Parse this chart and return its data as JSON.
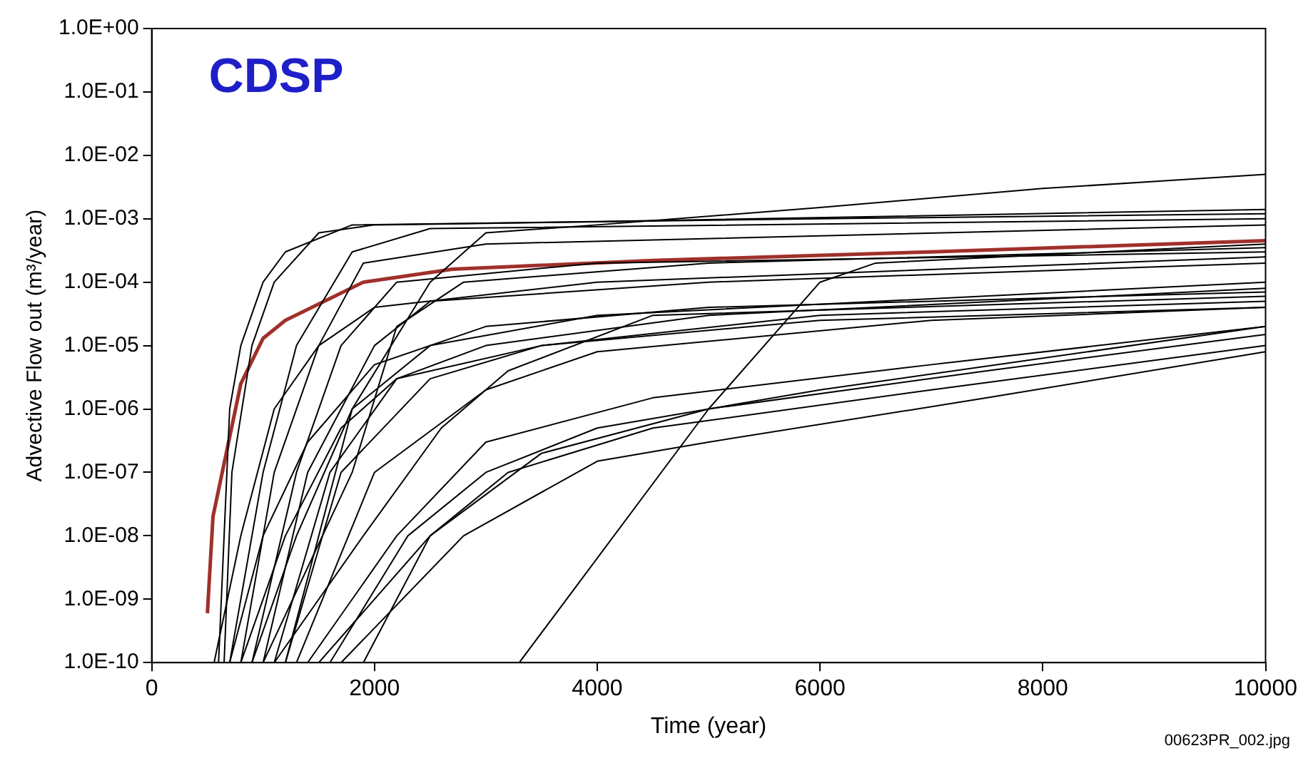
{
  "chart_data": {
    "type": "line",
    "title": "CDSP",
    "xlabel": "Time (year)",
    "ylabel": "Advective Flow out (m³/year)",
    "log": "y",
    "grid": false,
    "legend": false,
    "marker": "none",
    "line_style": "solid",
    "xlim": [
      0,
      10000
    ],
    "xticks": [
      0,
      2000,
      4000,
      6000,
      8000,
      10000
    ],
    "ylim": [
      1e-10,
      1
    ],
    "yticks": [
      {
        "value": 1e-10,
        "label": "1.0E-10"
      },
      {
        "value": 1e-09,
        "label": "1.0E-09"
      },
      {
        "value": 1e-08,
        "label": "1.0E-08"
      },
      {
        "value": 1e-07,
        "label": "1.0E-07"
      },
      {
        "value": 1e-06,
        "label": "1.0E-06"
      },
      {
        "value": 1e-05,
        "label": "1.0E-05"
      },
      {
        "value": 0.0001,
        "label": "1.0E-04"
      },
      {
        "value": 0.001,
        "label": "1.0E-03"
      },
      {
        "value": 0.01,
        "label": "1.0E-02"
      },
      {
        "value": 0.1,
        "label": "1.0E-01"
      },
      {
        "value": 1,
        "label": "1.0E+00"
      }
    ],
    "annotations": [
      "00623PR_002.jpg"
    ],
    "series": [
      {
        "color": "#000000",
        "x": [
          600,
          650,
          700,
          800,
          1000,
          1200,
          1800,
          4000,
          10000
        ],
        "values": [
          1e-10,
          1e-08,
          1e-06,
          1e-05,
          0.0001,
          0.0003,
          0.0008,
          0.0009,
          0.0014
        ]
      },
      {
        "color": "#000000",
        "x": [
          1200,
          1800,
          2500,
          3000,
          4000,
          6000,
          8000,
          10000
        ],
        "values": [
          1e-10,
          1e-06,
          0.0001,
          0.0006,
          0.0008,
          0.0015,
          0.003,
          0.005
        ]
      },
      {
        "color": "#000000",
        "x": [
          700,
          1000,
          1300,
          1800,
          2500,
          10000
        ],
        "values": [
          1e-10,
          1e-07,
          1e-05,
          0.0003,
          0.0007,
          0.001
        ]
      },
      {
        "color": "#000000",
        "x": [
          800,
          1100,
          1500,
          1900,
          3000,
          10000
        ],
        "values": [
          1e-10,
          1e-07,
          1e-05,
          0.0002,
          0.0004,
          0.0008
        ]
      },
      {
        "color": "#000000",
        "x": [
          900,
          1300,
          1700,
          2200,
          4000,
          10000
        ],
        "values": [
          1e-10,
          1e-07,
          1e-05,
          0.0001,
          0.0002,
          0.0003
        ]
      },
      {
        "color": "#000000",
        "x": [
          1000,
          1400,
          2000,
          2500,
          5000,
          10000
        ],
        "values": [
          1e-10,
          1e-07,
          1e-05,
          5e-05,
          0.0001,
          0.0002
        ]
      },
      {
        "color": "#000000",
        "x": [
          1100,
          1600,
          2200,
          3000,
          5000,
          10000
        ],
        "values": [
          1e-10,
          1e-07,
          3e-06,
          1e-05,
          3e-05,
          8e-05
        ]
      },
      {
        "color": "#000000",
        "x": [
          1200,
          1700,
          2500,
          3500,
          6000,
          10000
        ],
        "values": [
          1e-10,
          1e-07,
          3e-06,
          1e-05,
          3e-05,
          5e-05
        ]
      },
      {
        "color": "#000000",
        "x": [
          1300,
          2000,
          3000,
          4000,
          7000,
          10000
        ],
        "values": [
          1e-10,
          1e-07,
          2e-06,
          8e-06,
          2.5e-05,
          4e-05
        ]
      },
      {
        "color": "#000000",
        "x": [
          1400,
          2200,
          3000,
          4500,
          7000,
          10000
        ],
        "values": [
          1e-10,
          1e-08,
          3e-07,
          1.5e-06,
          5e-06,
          2e-05
        ]
      },
      {
        "color": "#000000",
        "x": [
          1500,
          2500,
          3500,
          5000,
          7500,
          10000
        ],
        "values": [
          1e-10,
          1e-08,
          2e-07,
          1e-06,
          4e-06,
          1.5e-05
        ]
      },
      {
        "color": "#000000",
        "x": [
          1700,
          2800,
          4000,
          5000,
          7500,
          10000
        ],
        "values": [
          1e-10,
          1e-08,
          1.5e-07,
          3e-07,
          1.5e-06,
          8e-06
        ]
      },
      {
        "color": "#000000",
        "x": [
          3300,
          5000,
          6000,
          6500,
          10000
        ],
        "values": [
          1e-10,
          1e-06,
          0.0001,
          0.0002,
          0.0004
        ]
      },
      {
        "color": "#000000",
        "x": [
          1900,
          2500,
          3200,
          4500,
          7000,
          10000
        ],
        "values": [
          1e-10,
          1e-08,
          1e-07,
          5e-07,
          2e-06,
          1e-05
        ]
      },
      {
        "color": "#000000",
        "x": [
          560,
          800,
          1100,
          1500,
          2000,
          4000,
          10000
        ],
        "values": [
          1e-10,
          1e-08,
          1e-06,
          1e-05,
          4e-05,
          0.0001,
          0.00025
        ]
      },
      {
        "color": "#000000",
        "x": [
          700,
          1000,
          1400,
          2000,
          3000,
          5000,
          10000
        ],
        "values": [
          1e-10,
          1e-08,
          3e-07,
          5e-06,
          2e-05,
          4e-05,
          7e-05
        ]
      },
      {
        "color": "#000000",
        "x": [
          900,
          1300,
          1800,
          2500,
          4000,
          10000
        ],
        "values": [
          1e-10,
          1e-08,
          1e-06,
          1e-05,
          3e-05,
          0.0001
        ]
      },
      {
        "color": "#000000",
        "x": [
          650,
          720,
          900,
          1100,
          1500,
          2000,
          6000,
          10000
        ],
        "values": [
          1e-10,
          1e-07,
          1e-05,
          0.0001,
          0.0006,
          0.0008,
          0.001,
          0.0012
        ]
      },
      {
        "color": "#000000",
        "x": [
          1000,
          1800,
          2200,
          2800,
          5000,
          10000
        ],
        "values": [
          1e-10,
          1e-07,
          2e-05,
          0.0001,
          0.0002,
          0.00035
        ]
      },
      {
        "color": "#000000",
        "x": [
          1100,
          1900,
          2600,
          3200,
          4500,
          10000
        ],
        "values": [
          1e-10,
          1e-08,
          5e-07,
          4e-06,
          3e-05,
          6e-05
        ]
      },
      {
        "color": "#000000",
        "x": [
          1600,
          2300,
          3000,
          4000,
          6000,
          10000
        ],
        "values": [
          1e-10,
          1e-08,
          1e-07,
          5e-07,
          2e-06,
          2e-05
        ]
      },
      {
        "color": "#000000",
        "x": [
          800,
          1200,
          1700,
          2200,
          3500,
          6000,
          10000
        ],
        "values": [
          1e-10,
          1e-08,
          5e-07,
          3e-06,
          1e-05,
          2.5e-05,
          4e-05
        ]
      },
      {
        "color": "#a0302a",
        "x": [
          500,
          550,
          800,
          1000,
          1200,
          1900,
          2700,
          4500,
          7000,
          10000
        ],
        "values": [
          6e-10,
          2e-08,
          2.5e-06,
          1.3e-05,
          2.5e-05,
          0.0001,
          0.00016,
          0.00022,
          0.0003,
          0.00045
        ]
      }
    ]
  }
}
